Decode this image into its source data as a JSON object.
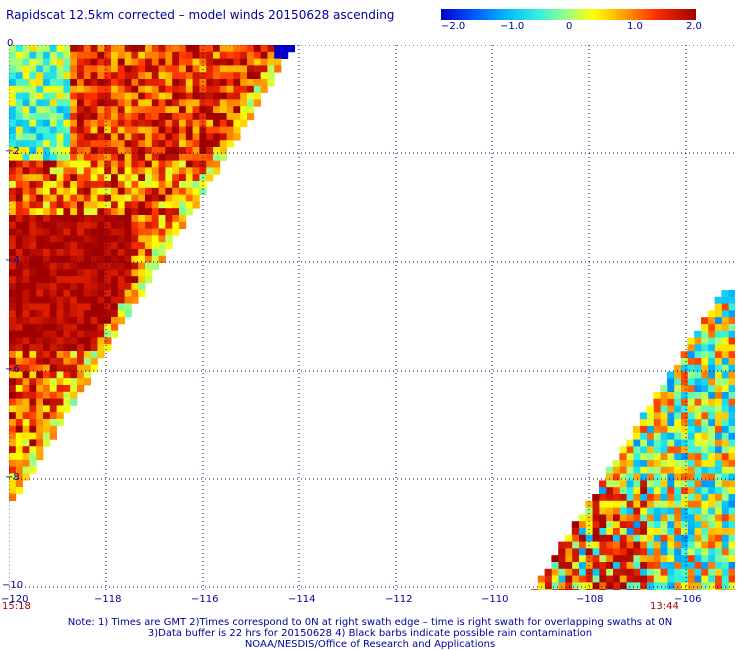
{
  "title": "Rapidscat 12.5km corrected – model winds 20150628 ascending",
  "colorbar": {
    "labels": [
      "−2.0",
      "−1.0",
      "0",
      "1.0",
      "2.0"
    ],
    "min": -2.0,
    "max": 2.0
  },
  "axes": {
    "lat_labels": [
      "0",
      "−2",
      "−4",
      "−6",
      "−8",
      "−10"
    ],
    "lon_labels": [
      "−120",
      "−118",
      "−116",
      "−114",
      "−112",
      "−110",
      "−108",
      "−106"
    ],
    "lat_range": [
      -10,
      0
    ],
    "lon_range": [
      -120,
      -105
    ]
  },
  "times": {
    "left_swath": "15:18",
    "right_swath": "13:44"
  },
  "notes": {
    "line1": "Note: 1) Times are GMT 2)Times correspond to 0N at right swath edge – time is right swath for overlapping swaths at 0N",
    "line2": "3)Data buffer is 22 hrs for 20150628 4) Black barbs indicate possible rain contamination",
    "line3": "NOAA/NESDIS/Office of Research and Applications"
  },
  "colors": {
    "label_text": "#000099",
    "time_text": "#a00000",
    "scale_low": "#0000c8",
    "scale_high": "#a00000"
  }
}
